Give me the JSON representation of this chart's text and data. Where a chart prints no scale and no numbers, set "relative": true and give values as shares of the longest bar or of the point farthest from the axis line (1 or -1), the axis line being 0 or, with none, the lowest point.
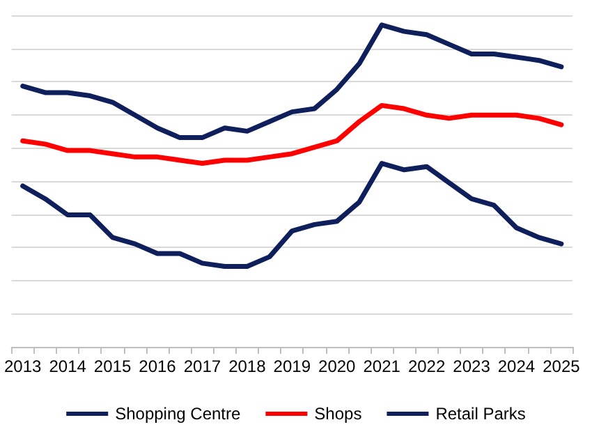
{
  "chart_data": {
    "type": "line",
    "relative": true,
    "grid": "y",
    "legend": "bottom",
    "marker": "none",
    "line_style": "solid",
    "categories": [
      "2013",
      null,
      "2014",
      null,
      "2015",
      null,
      "2016",
      null,
      "2017",
      null,
      "2018",
      null,
      "2019",
      null,
      "2020",
      null,
      "2021",
      null,
      "2022",
      null,
      "2023",
      null,
      "2024",
      null,
      "2025"
    ],
    "series": [
      {
        "name": "Shopping Centre",
        "color": "#0f1f5c",
        "values": [
          0.81,
          0.79,
          0.79,
          0.78,
          0.76,
          0.72,
          0.68,
          0.65,
          0.65,
          0.68,
          0.67,
          0.7,
          0.73,
          0.74,
          0.8,
          0.88,
          1.0,
          0.98,
          0.97,
          0.94,
          0.91,
          0.91,
          0.9,
          0.89,
          0.87
        ]
      },
      {
        "name": "Shops",
        "color": "#ff0000",
        "values": [
          0.64,
          0.63,
          0.61,
          0.61,
          0.6,
          0.59,
          0.59,
          0.58,
          0.57,
          0.58,
          0.58,
          0.59,
          0.6,
          0.62,
          0.64,
          0.7,
          0.75,
          0.74,
          0.72,
          0.71,
          0.72,
          0.72,
          0.72,
          0.71,
          0.69
        ]
      },
      {
        "name": "Retail Parks",
        "color": "#0f1f5c",
        "values": [
          0.5,
          0.46,
          0.41,
          0.41,
          0.34,
          0.32,
          0.29,
          0.29,
          0.26,
          0.25,
          0.25,
          0.28,
          0.36,
          0.38,
          0.39,
          0.45,
          0.57,
          0.55,
          0.56,
          0.51,
          0.46,
          0.44,
          0.37,
          0.34,
          0.32
        ]
      }
    ]
  }
}
